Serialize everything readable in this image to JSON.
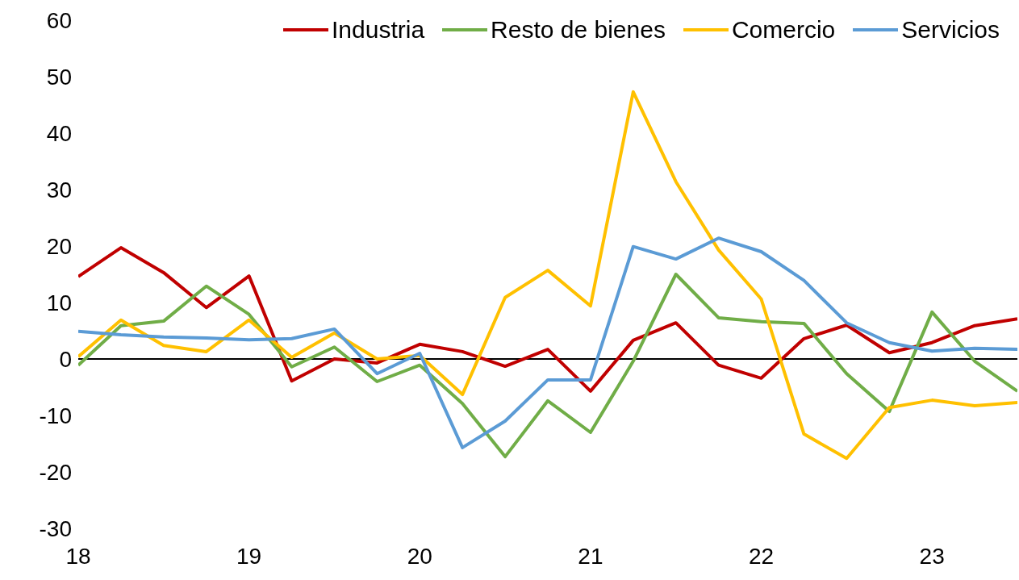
{
  "chart_data": {
    "type": "line",
    "x": [
      18,
      18.25,
      18.5,
      18.75,
      19,
      19.25,
      19.5,
      19.75,
      20,
      20.25,
      20.5,
      20.75,
      21,
      21.25,
      21.5,
      21.75,
      22,
      22.25,
      22.5,
      22.75,
      23,
      23.25,
      23.5
    ],
    "series": [
      {
        "name": "Industria",
        "color": "#c00000",
        "values": [
          14.6,
          19.7,
          15.3,
          9.1,
          14.7,
          -3.9,
          0,
          -0.7,
          2.6,
          1.3,
          -1.3,
          1.7,
          -5.7,
          3.3,
          6.4,
          -1.1,
          -3.4,
          3.6,
          6.0,
          1.1,
          2.9,
          5.9,
          7.1
        ]
      },
      {
        "name": "Resto de bienes",
        "color": "#70ad47",
        "values": [
          -1.1,
          5.9,
          6.7,
          12.9,
          7.9,
          -1.4,
          2.1,
          -4.0,
          -1.1,
          -7.9,
          -17.3,
          -7.4,
          -13.0,
          -0.4,
          15.0,
          7.3,
          6.6,
          6.3,
          -2.6,
          -9.3,
          8.3,
          -0.4,
          -5.7
        ]
      },
      {
        "name": "Comercio",
        "color": "#ffc000",
        "values": [
          0.4,
          6.9,
          2.4,
          1.3,
          6.9,
          0.3,
          4.6,
          0,
          0.6,
          -6.3,
          10.9,
          15.7,
          9.4,
          47.3,
          31.4,
          19.3,
          10.6,
          -13.3,
          -17.6,
          -8.6,
          -7.3,
          -8.3,
          -7.7
        ]
      },
      {
        "name": "Servicios",
        "color": "#5b9bd5",
        "values": [
          4.9,
          4.3,
          3.9,
          3.7,
          3.4,
          3.6,
          5.3,
          -2.6,
          1.0,
          -15.7,
          -11.0,
          -3.7,
          -3.7,
          19.9,
          17.7,
          21.4,
          19.0,
          13.9,
          6.4,
          2.9,
          1.4,
          1.9,
          1.7
        ]
      }
    ],
    "xlim": [
      18,
      23.5
    ],
    "xticks": [
      18,
      19,
      20,
      21,
      22,
      23
    ],
    "ylim": [
      -30,
      60
    ],
    "yticks": [
      -30,
      -20,
      -10,
      0,
      10,
      20,
      30,
      40,
      50,
      60
    ],
    "ref_lines": [
      {
        "axis": "y",
        "value": 0,
        "color": "#000000"
      }
    ],
    "grid": false,
    "legend": "top",
    "marker": "none",
    "line_style": "solid"
  }
}
